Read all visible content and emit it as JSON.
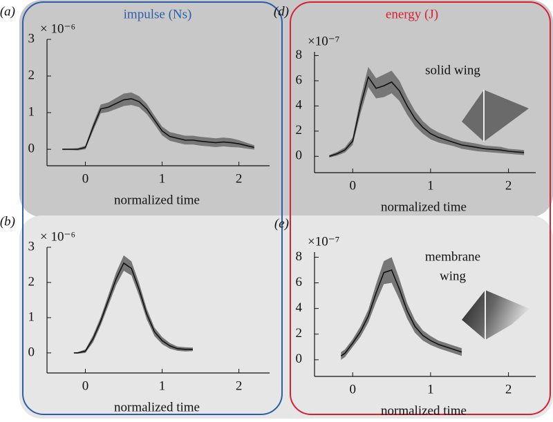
{
  "headers": {
    "impulse": "impulse (Ns)",
    "energy": "energy (J)"
  },
  "chart_data": [
    {
      "type": "line",
      "panel_label": "(a)",
      "exponent_label": "× 10⁻⁶",
      "x_label": "normalized time",
      "x": [
        -0.3,
        -0.2,
        -0.1,
        0,
        0.1,
        0.2,
        0.3,
        0.4,
        0.5,
        0.6,
        0.7,
        0.8,
        0.9,
        1.0,
        1.1,
        1.2,
        1.3,
        1.4,
        1.5,
        1.6,
        1.7,
        1.8,
        1.9,
        2.0,
        2.1,
        2.2
      ],
      "values": [
        0,
        0,
        0,
        0.05,
        0.6,
        1.1,
        1.15,
        1.25,
        1.35,
        1.38,
        1.3,
        1.1,
        0.8,
        0.5,
        0.35,
        0.3,
        0.25,
        0.25,
        0.22,
        0.2,
        0.18,
        0.2,
        0.18,
        0.15,
        0.1,
        0.05
      ],
      "errors": [
        0.02,
        0.02,
        0.03,
        0.05,
        0.1,
        0.12,
        0.13,
        0.15,
        0.17,
        0.17,
        0.15,
        0.14,
        0.12,
        0.12,
        0.12,
        0.12,
        0.12,
        0.12,
        0.12,
        0.12,
        0.12,
        0.12,
        0.12,
        0.1,
        0.08,
        0.06
      ],
      "color": "#111111",
      "band_color": "#777777",
      "xlim": [
        -0.5,
        2.4
      ],
      "ylim": [
        -0.45,
        3
      ],
      "xticks": [
        0,
        1,
        2
      ],
      "yticks": [
        0,
        1,
        2,
        3
      ]
    },
    {
      "type": "line",
      "panel_label": "(b)",
      "exponent_label": "× 10⁻⁶",
      "x_label": "normalized time",
      "x": [
        -0.15,
        -0.1,
        0,
        0.1,
        0.2,
        0.3,
        0.4,
        0.5,
        0.6,
        0.7,
        0.8,
        0.9,
        1.0,
        1.1,
        1.2,
        1.3,
        1.4
      ],
      "values": [
        0,
        0,
        0.05,
        0.4,
        0.9,
        1.5,
        2.1,
        2.55,
        2.4,
        1.8,
        1.1,
        0.6,
        0.35,
        0.2,
        0.12,
        0.1,
        0.1
      ],
      "errors": [
        0.01,
        0.02,
        0.05,
        0.1,
        0.12,
        0.15,
        0.18,
        0.22,
        0.2,
        0.18,
        0.15,
        0.12,
        0.1,
        0.08,
        0.06,
        0.06,
        0.05
      ],
      "color": "#111111",
      "band_color": "#777777",
      "xlim": [
        -0.5,
        2.4
      ],
      "ylim": [
        -0.57,
        3
      ],
      "xticks": [
        0,
        1,
        2
      ],
      "yticks": [
        0,
        1,
        2,
        3
      ]
    },
    {
      "type": "line",
      "panel_label": "(d)",
      "exponent_label": "×10⁻⁷",
      "x_label": "normalized time",
      "annotation": [
        "solid wing"
      ],
      "x": [
        -0.3,
        -0.2,
        -0.1,
        0,
        0.1,
        0.2,
        0.3,
        0.4,
        0.5,
        0.6,
        0.7,
        0.8,
        0.9,
        1.0,
        1.1,
        1.2,
        1.3,
        1.4,
        1.5,
        1.6,
        1.7,
        1.8,
        1.9,
        2.0,
        2.1,
        2.2
      ],
      "values": [
        0,
        0.2,
        0.5,
        1.2,
        4,
        6.3,
        5.4,
        5.6,
        5.9,
        5.2,
        4,
        3,
        2.3,
        1.8,
        1.5,
        1.3,
        1.1,
        0.9,
        0.8,
        0.7,
        0.6,
        0.55,
        0.5,
        0.4,
        0.35,
        0.3
      ],
      "errors": [
        0.1,
        0.15,
        0.2,
        0.3,
        0.6,
        0.8,
        0.8,
        0.9,
        0.9,
        0.8,
        0.7,
        0.6,
        0.5,
        0.45,
        0.4,
        0.35,
        0.3,
        0.3,
        0.3,
        0.3,
        0.25,
        0.25,
        0.25,
        0.2,
        0.2,
        0.2
      ],
      "color": "#111111",
      "band_color": "#777777",
      "xlim": [
        -0.49,
        2.35
      ],
      "ylim": [
        -1.3,
        8.3
      ],
      "xticks": [
        0,
        1,
        2
      ],
      "yticks": [
        0,
        2,
        4,
        6,
        8
      ]
    },
    {
      "type": "line",
      "panel_label": "(e)",
      "exponent_label": "×10⁻⁷",
      "x_label": "normalized time",
      "annotation": [
        "membrane",
        "wing"
      ],
      "x": [
        -0.15,
        -0.1,
        0,
        0.1,
        0.2,
        0.3,
        0.4,
        0.5,
        0.6,
        0.7,
        0.8,
        0.9,
        1.0,
        1.1,
        1.2,
        1.3,
        1.4
      ],
      "values": [
        0.3,
        0.5,
        1.3,
        2.2,
        3.4,
        5.2,
        6.8,
        7.0,
        5.5,
        3.8,
        2.6,
        1.9,
        1.5,
        1.2,
        1.0,
        0.8,
        0.6
      ],
      "errors": [
        0.3,
        0.3,
        0.3,
        0.4,
        0.5,
        0.7,
        0.9,
        1.0,
        0.8,
        0.6,
        0.5,
        0.4,
        0.35,
        0.3,
        0.3,
        0.3,
        0.3
      ],
      "color": "#111111",
      "band_color": "#777777",
      "xlim": [
        -0.49,
        2.35
      ],
      "ylim": [
        -1.3,
        8.4
      ],
      "xticks": [
        0,
        1,
        2
      ],
      "yticks": [
        0,
        2,
        4,
        6,
        8
      ]
    }
  ]
}
